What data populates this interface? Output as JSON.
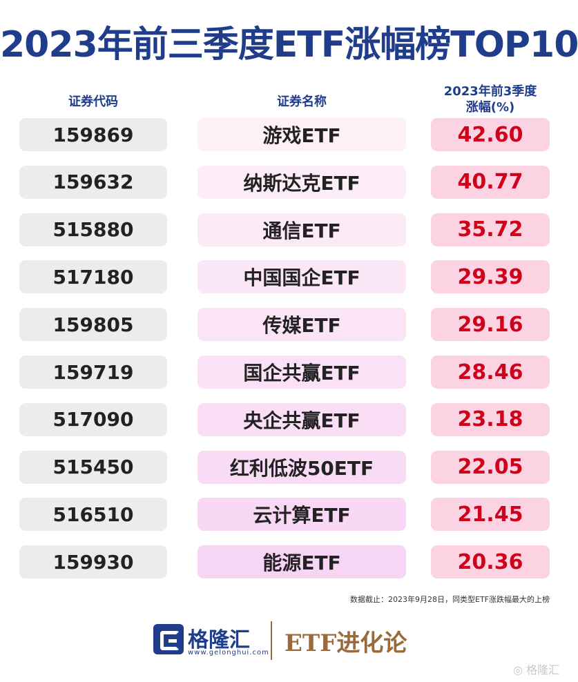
{
  "title": "2023年前三季度ETF涨幅榜TOP10",
  "headers": {
    "code": "证券代码",
    "name": "证券名称",
    "change_line1": "2023年前3季度",
    "change_line2": "涨幅(%)"
  },
  "rows": [
    {
      "code": "159869",
      "name": "游戏ETF",
      "change": "42.60"
    },
    {
      "code": "159632",
      "name": "纳斯达克ETF",
      "change": "40.77"
    },
    {
      "code": "515880",
      "name": "通信ETF",
      "change": "35.72"
    },
    {
      "code": "517180",
      "name": "中国国企ETF",
      "change": "29.39"
    },
    {
      "code": "159805",
      "name": "传媒ETF",
      "change": "29.16"
    },
    {
      "code": "159719",
      "name": "国企共赢ETF",
      "change": "28.46"
    },
    {
      "code": "517090",
      "name": "央企共赢ETF",
      "change": "23.18"
    },
    {
      "code": "515450",
      "name": "红利低波50ETF",
      "change": "22.05"
    },
    {
      "code": "516510",
      "name": "云计算ETF",
      "change": "21.45"
    },
    {
      "code": "159930",
      "name": "能源ETF",
      "change": "20.36"
    }
  ],
  "note": "数据截止：2023年9月28日，同类型ETF涨跌幅最大的上榜",
  "footer": {
    "brand": "格隆汇",
    "brand_url": "www.gelonghui.com",
    "slogan": "ETF进化论",
    "watermark": "格隆汇"
  },
  "colors": {
    "title": "#1f3d8a",
    "change_text": "#d0021b",
    "change_bg": "#fbd3e2",
    "code_bg": "#ececec",
    "name_bg_start": "#fdf0f7",
    "name_bg_end": "#f7d5f5",
    "slogan": "#9a6a3c"
  },
  "chart_data": {
    "type": "table",
    "title": "2023年前三季度ETF涨幅榜TOP10",
    "columns": [
      "证券代码",
      "证券名称",
      "2023年前3季度涨幅(%)"
    ],
    "rows": [
      [
        "159869",
        "游戏ETF",
        42.6
      ],
      [
        "159632",
        "纳斯达克ETF",
        40.77
      ],
      [
        "515880",
        "通信ETF",
        35.72
      ],
      [
        "517180",
        "中国国企ETF",
        29.39
      ],
      [
        "159805",
        "传媒ETF",
        29.16
      ],
      [
        "159719",
        "国企共赢ETF",
        28.46
      ],
      [
        "517090",
        "央企共赢ETF",
        23.18
      ],
      [
        "515450",
        "红利低波50ETF",
        22.05
      ],
      [
        "516510",
        "云计算ETF",
        21.45
      ],
      [
        "159930",
        "能源ETF",
        20.36
      ]
    ]
  }
}
